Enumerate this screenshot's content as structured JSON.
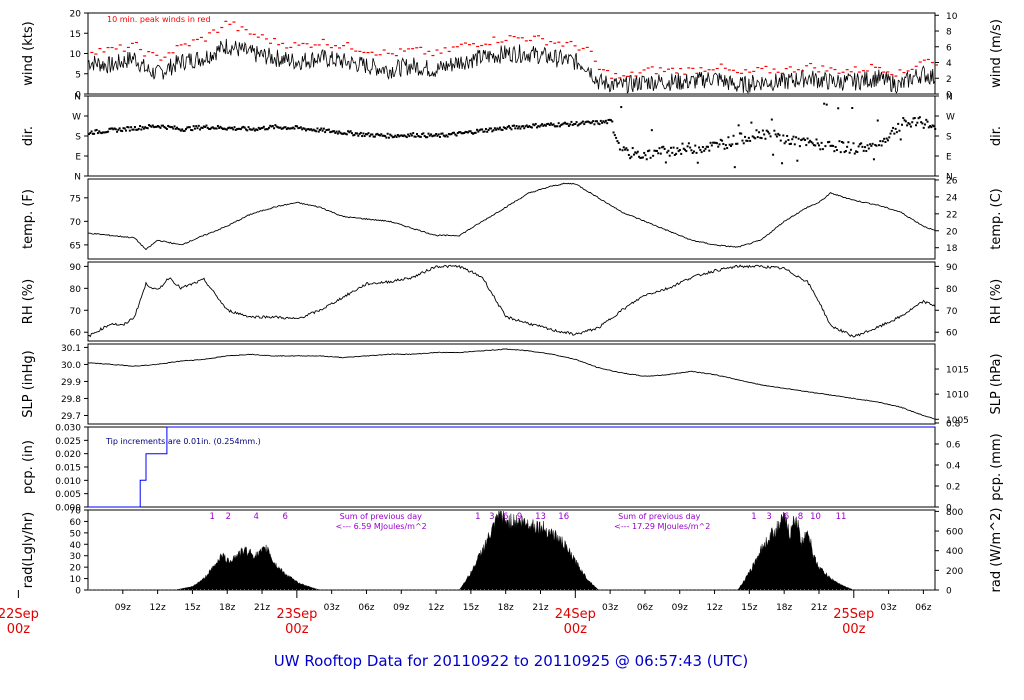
{
  "title": "UW Rooftop Data for 20110922  to  20110925 @ 06:57:43  (UTC)",
  "colors": {
    "axis": "#000000",
    "data": "#000000",
    "peak": "#ff0000",
    "title": "#0000cc",
    "date": "#e00000",
    "note_pcp": "#000080",
    "note_rad": "#9900cc",
    "pcp_line": "#0000ff"
  },
  "time_axis": {
    "hours_start": 6,
    "hours_end": 79,
    "ticks": [
      {
        "h": 9,
        "label": "09z"
      },
      {
        "h": 12,
        "label": "12z"
      },
      {
        "h": 15,
        "label": "15z"
      },
      {
        "h": 18,
        "label": "18z"
      },
      {
        "h": 21,
        "label": "21z"
      },
      {
        "h": 27,
        "label": "03z"
      },
      {
        "h": 30,
        "label": "06z"
      },
      {
        "h": 33,
        "label": "09z"
      },
      {
        "h": 36,
        "label": "12z"
      },
      {
        "h": 39,
        "label": "15z"
      },
      {
        "h": 42,
        "label": "18z"
      },
      {
        "h": 45,
        "label": "21z"
      },
      {
        "h": 51,
        "label": "03z"
      },
      {
        "h": 54,
        "label": "06z"
      },
      {
        "h": 57,
        "label": "09z"
      },
      {
        "h": 60,
        "label": "12z"
      },
      {
        "h": 63,
        "label": "15z"
      },
      {
        "h": 66,
        "label": "18z"
      },
      {
        "h": 69,
        "label": "21z"
      },
      {
        "h": 75,
        "label": "03z"
      },
      {
        "h": 78,
        "label": "06z"
      }
    ],
    "dates": [
      {
        "h": 0,
        "day": "22Sep",
        "hour": "00z"
      },
      {
        "h": 24,
        "day": "23Sep",
        "hour": "00z"
      },
      {
        "h": 48,
        "day": "24Sep",
        "hour": "00z"
      },
      {
        "h": 72,
        "day": "25Sep",
        "hour": "00z"
      }
    ]
  },
  "chart_data": [
    {
      "id": "wind",
      "type": "line",
      "ylabel": "wind (kts)",
      "ylabel_right": "wind (m/s)",
      "ylim": [
        0,
        20
      ],
      "yticks": [
        0,
        5,
        10,
        15,
        20
      ],
      "right_ticks": [
        0,
        2,
        4,
        6,
        8,
        10
      ],
      "right_scale": 1.9438,
      "annotation": "10 min. peak winds in red",
      "x": [
        6,
        8,
        10,
        11,
        12,
        14,
        16,
        18,
        19,
        20,
        22,
        24,
        26,
        28,
        30,
        32,
        34,
        36,
        38,
        40,
        42,
        44,
        46,
        48,
        49,
        50,
        52,
        54,
        56,
        58,
        60,
        62,
        64,
        66,
        68,
        70,
        72,
        74,
        76,
        77,
        78,
        79
      ],
      "values": [
        8,
        7,
        9,
        6,
        5,
        8,
        9,
        12,
        11,
        10,
        9,
        8,
        9,
        8,
        7,
        6,
        7,
        6,
        8,
        9,
        10,
        10,
        9,
        8,
        7,
        3,
        2,
        3,
        3,
        3,
        4,
        2,
        3,
        3,
        4,
        3,
        3,
        4,
        2,
        4,
        5,
        4
      ],
      "peaks": [
        11,
        11,
        12,
        10,
        9,
        12,
        14,
        18,
        16,
        15,
        13,
        12,
        13,
        12,
        11,
        10,
        11,
        10,
        12,
        13,
        14,
        14,
        13,
        12,
        11,
        6,
        4,
        6,
        6,
        6,
        7,
        5,
        6,
        6,
        7,
        6,
        6,
        7,
        5,
        7,
        9,
        7
      ]
    },
    {
      "id": "dir",
      "type": "scatter",
      "ylabel": "dir.",
      "ylabel_right": "dir.",
      "ylim": [
        0,
        360
      ],
      "yticks": [
        0,
        90,
        180,
        270,
        360
      ],
      "ytick_labels": [
        "N",
        "E",
        "S",
        "W",
        "N"
      ],
      "x": [
        6,
        8,
        10,
        12,
        14,
        16,
        18,
        20,
        22,
        24,
        26,
        28,
        30,
        32,
        34,
        36,
        38,
        40,
        42,
        44,
        46,
        48,
        50,
        51,
        52,
        54,
        56,
        58,
        60,
        62,
        64,
        66,
        68,
        70,
        72,
        74,
        76,
        78,
        79
      ],
      "values": [
        200,
        210,
        220,
        230,
        215,
        225,
        220,
        215,
        225,
        220,
        210,
        200,
        190,
        185,
        190,
        185,
        195,
        210,
        220,
        230,
        235,
        240,
        245,
        250,
        110,
        100,
        120,
        130,
        140,
        170,
        200,
        170,
        150,
        140,
        130,
        140,
        240,
        245,
        220
      ]
    },
    {
      "id": "temp",
      "type": "line",
      "ylabel": "temp. (F)",
      "ylabel_right": "temp. (C)",
      "ylim": [
        62,
        79
      ],
      "yticks": [
        65,
        70,
        75
      ],
      "right_ticks": [
        18,
        20,
        22,
        24,
        26
      ],
      "right_kind": "c_to_f",
      "x": [
        6,
        8,
        10,
        11,
        12,
        14,
        16,
        18,
        20,
        22,
        24,
        26,
        28,
        30,
        32,
        34,
        36,
        38,
        40,
        42,
        44,
        46,
        47,
        48,
        50,
        52,
        54,
        56,
        58,
        60,
        62,
        64,
        66,
        68,
        69,
        70,
        72,
        74,
        76,
        78,
        79
      ],
      "values": [
        67.5,
        67,
        66.5,
        64,
        66,
        65,
        67,
        69,
        71.5,
        73,
        74,
        73,
        71,
        70.5,
        70,
        68.5,
        67,
        67,
        70,
        73,
        76,
        77.5,
        78,
        78,
        75,
        72,
        70,
        68,
        66,
        65,
        64.5,
        66,
        70,
        73,
        74,
        76,
        74.5,
        73.5,
        72,
        69,
        68
      ]
    },
    {
      "id": "rh",
      "type": "line",
      "ylabel": "RH (%)",
      "ylabel_right": "RH (%)",
      "ylim": [
        56,
        92
      ],
      "yticks": [
        60,
        70,
        80,
        90
      ],
      "right_ticks": [
        60,
        70,
        80,
        90
      ],
      "x": [
        6,
        8,
        9,
        10,
        11,
        12,
        13,
        14,
        16,
        17,
        18,
        20,
        22,
        24,
        26,
        28,
        30,
        32,
        34,
        36,
        38,
        40,
        41,
        42,
        44,
        46,
        48,
        50,
        52,
        54,
        56,
        58,
        60,
        62,
        64,
        66,
        68,
        69,
        70,
        72,
        74,
        76,
        78,
        79
      ],
      "values": [
        58,
        64,
        63,
        67,
        82,
        79,
        85,
        80,
        84,
        77,
        70,
        67,
        67,
        66,
        70,
        76,
        82,
        83,
        85,
        90,
        90,
        85,
        76,
        67,
        64,
        61,
        59,
        62,
        70,
        77,
        80,
        85,
        88,
        90,
        90,
        89,
        83,
        74,
        63,
        58,
        62,
        67,
        74,
        72
      ]
    },
    {
      "id": "slp",
      "type": "line",
      "ylabel": "SLP (inHg)",
      "ylabel_right": "SLP (hPa)",
      "ylim": [
        29.65,
        30.12
      ],
      "yticks": [
        29.7,
        29.8,
        29.9,
        30.0,
        30.1
      ],
      "ytick_labels": [
        "29.7",
        "29.8",
        "29.9",
        "30.0",
        "30.1"
      ],
      "right_ticks": [
        1005,
        1010,
        1015
      ],
      "right_kind": "hpa_to_inhg",
      "x": [
        6,
        8,
        10,
        12,
        14,
        16,
        18,
        20,
        22,
        24,
        26,
        28,
        30,
        32,
        34,
        36,
        38,
        40,
        42,
        44,
        46,
        48,
        50,
        52,
        54,
        56,
        58,
        60,
        62,
        64,
        66,
        68,
        70,
        72,
        74,
        76,
        78,
        79
      ],
      "values": [
        30.01,
        30.0,
        29.99,
        30.0,
        30.02,
        30.03,
        30.05,
        30.06,
        30.05,
        30.05,
        30.05,
        30.04,
        30.05,
        30.06,
        30.06,
        30.07,
        30.07,
        30.08,
        30.09,
        30.08,
        30.06,
        30.03,
        29.98,
        29.95,
        29.93,
        29.94,
        29.96,
        29.94,
        29.91,
        29.88,
        29.86,
        29.84,
        29.82,
        29.8,
        29.78,
        29.75,
        29.7,
        29.68
      ]
    },
    {
      "id": "pcp",
      "type": "line",
      "ylabel": "pcp. (in)",
      "ylabel_right": "pcp. (mm)",
      "ylim": [
        0,
        0.03
      ],
      "yticks": [
        0,
        0.005,
        0.01,
        0.015,
        0.02,
        0.025,
        0.03
      ],
      "ytick_labels": [
        "0.000",
        "0.005",
        "0.010",
        "0.015",
        "0.020",
        "0.025",
        "0.030"
      ],
      "right_ticks": [
        0,
        0.2,
        0.4,
        0.6,
        0.8
      ],
      "right_scale": 0.0393701,
      "annotation": "Tip increments are 0.01in. (0.254mm.)",
      "step_x": [
        6,
        10.5,
        10.5,
        11,
        11,
        12.8,
        12.8,
        79
      ],
      "step_y": [
        0,
        0,
        0.01,
        0.01,
        0.02,
        0.02,
        0.03,
        0.03
      ]
    },
    {
      "id": "rad",
      "type": "area",
      "ylabel": "rad(Lgly/hr)",
      "ylabel_right": "rad (W/m^2)",
      "ylim": [
        0,
        70
      ],
      "yticks": [
        0,
        10,
        20,
        30,
        40,
        50,
        60,
        70
      ],
      "right_ticks": [
        0,
        200,
        400,
        600,
        800
      ],
      "right_scale": 0.086,
      "days": [
        {
          "x": [
            13.5,
            15,
            16,
            17,
            17.5,
            18,
            18.5,
            19.5,
            20.5,
            21.5,
            22,
            23,
            24,
            25,
            26
          ],
          "values": [
            0,
            3,
            10,
            22,
            32,
            25,
            28,
            35,
            30,
            37,
            24,
            14,
            7,
            3,
            0
          ]
        },
        {
          "x": [
            38,
            39,
            40,
            41,
            41.5,
            42,
            43,
            44,
            45,
            46,
            47,
            48,
            49,
            50
          ],
          "values": [
            0,
            15,
            35,
            55,
            68,
            60,
            60,
            58,
            55,
            50,
            40,
            25,
            10,
            0
          ]
        },
        {
          "x": [
            62,
            63,
            64,
            65,
            65.5,
            66,
            66.5,
            67,
            67.5,
            68,
            68.5,
            69,
            70,
            71,
            72
          ],
          "values": [
            0,
            15,
            35,
            50,
            55,
            63,
            48,
            65,
            40,
            55,
            30,
            20,
            10,
            4,
            0
          ]
        }
      ],
      "day_labels": [
        {
          "x": 16.7,
          "labels": [
            "1",
            "2",
            "4",
            "6"
          ],
          "xs": [
            16.7,
            18.1,
            20.5,
            23.0
          ]
        },
        {
          "x": 39.6,
          "labels": [
            "1",
            "3",
            "6",
            "9",
            "13",
            "16"
          ],
          "xs": [
            39.6,
            40.8,
            42.0,
            43.2,
            45.0,
            47.0
          ]
        },
        {
          "x": 63.4,
          "labels": [
            "1",
            "3",
            "6",
            "8",
            "10",
            "11"
          ],
          "xs": [
            63.4,
            64.7,
            66.2,
            67.4,
            68.7,
            70.9
          ]
        }
      ],
      "notes": [
        {
          "h": 27,
          "lines": [
            "Sum of previous day",
            "<--- 6.59 MJoules/m^2"
          ]
        },
        {
          "h": 51,
          "lines": [
            "Sum of previous day",
            "<--- 17.29 MJoules/m^2"
          ]
        }
      ]
    }
  ]
}
